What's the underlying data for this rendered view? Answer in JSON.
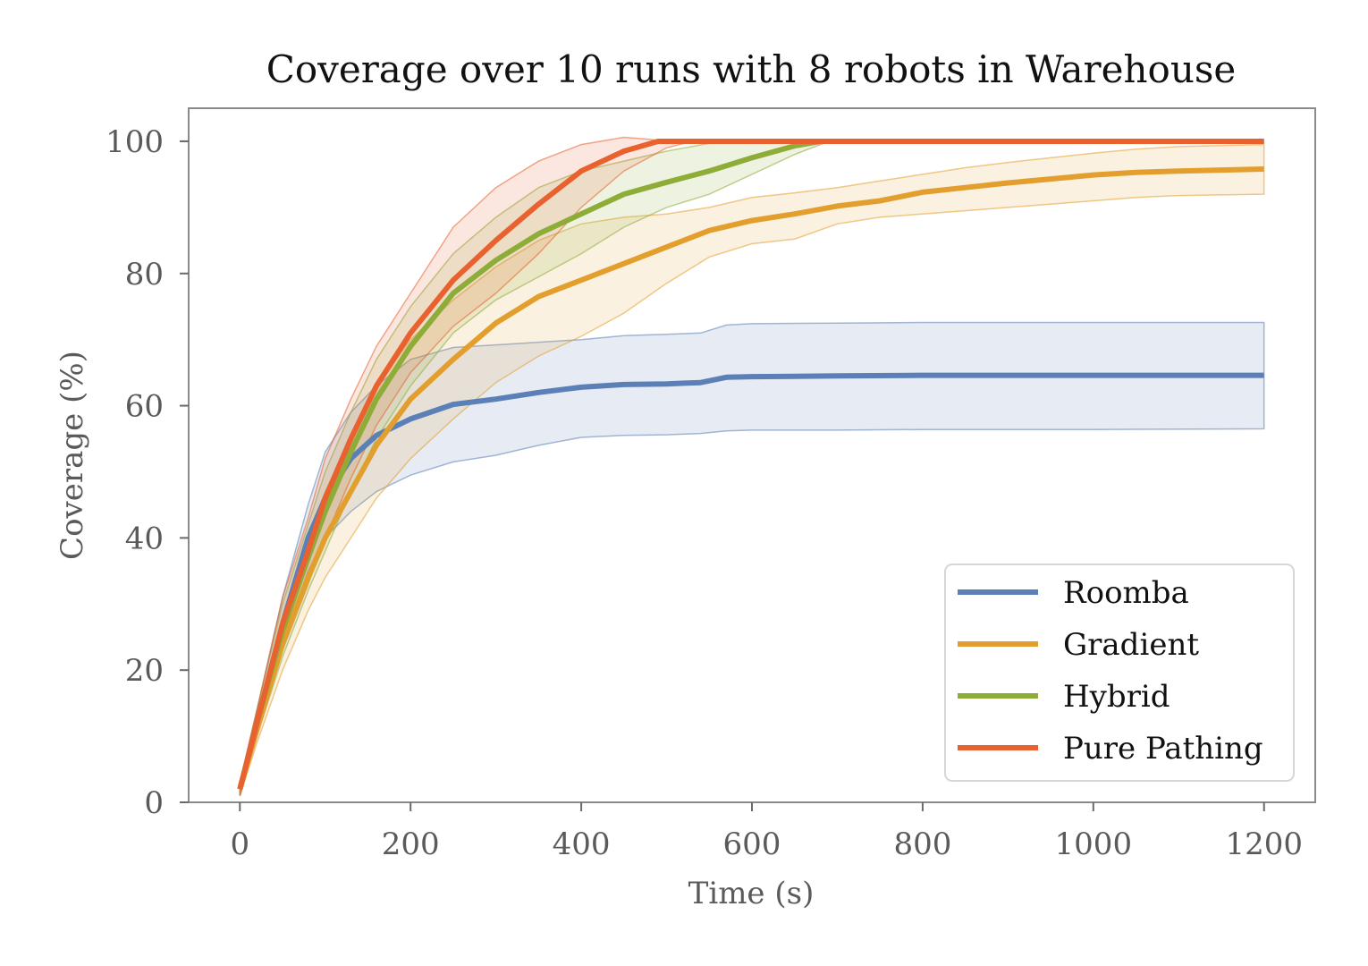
{
  "chart_data": {
    "type": "line",
    "title": "Coverage over 10 runs with 8 robots in Warehouse",
    "xlabel": "Time (s)",
    "ylabel": "Coverage (%)",
    "xlim": [
      -60,
      1260
    ],
    "ylim": [
      0,
      105
    ],
    "x_ticks": [
      0,
      200,
      400,
      600,
      800,
      1000,
      1200
    ],
    "y_ticks": [
      0,
      20,
      40,
      60,
      80,
      100
    ],
    "grid": false,
    "legend_position": "lower-right",
    "series": [
      {
        "name": "Roomba",
        "color": "#5b7fb7",
        "points": [
          [
            0,
            2
          ],
          [
            20,
            12
          ],
          [
            50,
            27
          ],
          [
            80,
            40
          ],
          [
            100,
            46
          ],
          [
            130,
            52
          ],
          [
            160,
            55.5
          ],
          [
            200,
            58
          ],
          [
            250,
            60.2
          ],
          [
            300,
            61
          ],
          [
            350,
            62
          ],
          [
            400,
            62.8
          ],
          [
            450,
            63.2
          ],
          [
            500,
            63.3
          ],
          [
            540,
            63.5
          ],
          [
            570,
            64.3
          ],
          [
            600,
            64.4
          ],
          [
            700,
            64.5
          ],
          [
            800,
            64.6
          ],
          [
            1000,
            64.6
          ],
          [
            1200,
            64.6
          ]
        ],
        "upper": [
          [
            0,
            3
          ],
          [
            20,
            14
          ],
          [
            50,
            31
          ],
          [
            80,
            45
          ],
          [
            100,
            53
          ],
          [
            130,
            59
          ],
          [
            160,
            63
          ],
          [
            200,
            67
          ],
          [
            250,
            68.8
          ],
          [
            300,
            69.2
          ],
          [
            350,
            69.6
          ],
          [
            400,
            70
          ],
          [
            450,
            70.6
          ],
          [
            500,
            70.8
          ],
          [
            540,
            71
          ],
          [
            570,
            72.2
          ],
          [
            600,
            72.4
          ],
          [
            700,
            72.5
          ],
          [
            800,
            72.6
          ],
          [
            1000,
            72.6
          ],
          [
            1200,
            72.6
          ]
        ],
        "lower": [
          [
            0,
            1
          ],
          [
            20,
            10
          ],
          [
            50,
            24
          ],
          [
            80,
            35
          ],
          [
            100,
            40
          ],
          [
            130,
            44
          ],
          [
            160,
            47
          ],
          [
            200,
            49.5
          ],
          [
            250,
            51.5
          ],
          [
            300,
            52.5
          ],
          [
            350,
            54
          ],
          [
            400,
            55.2
          ],
          [
            450,
            55.5
          ],
          [
            500,
            55.6
          ],
          [
            540,
            55.8
          ],
          [
            570,
            56.2
          ],
          [
            600,
            56.3
          ],
          [
            700,
            56.3
          ],
          [
            800,
            56.4
          ],
          [
            1000,
            56.4
          ],
          [
            1200,
            56.5
          ]
        ]
      },
      {
        "name": "Gradient",
        "color": "#e39f2e",
        "points": [
          [
            0,
            2
          ],
          [
            20,
            11
          ],
          [
            50,
            24
          ],
          [
            80,
            34
          ],
          [
            100,
            40
          ],
          [
            130,
            47
          ],
          [
            160,
            54
          ],
          [
            200,
            61
          ],
          [
            250,
            67
          ],
          [
            300,
            72.5
          ],
          [
            350,
            76.5
          ],
          [
            400,
            79
          ],
          [
            450,
            81.5
          ],
          [
            500,
            84
          ],
          [
            550,
            86.5
          ],
          [
            600,
            88
          ],
          [
            650,
            89
          ],
          [
            700,
            90.2
          ],
          [
            750,
            91
          ],
          [
            800,
            92.3
          ],
          [
            850,
            93
          ],
          [
            900,
            93.7
          ],
          [
            950,
            94.3
          ],
          [
            1000,
            94.9
          ],
          [
            1050,
            95.3
          ],
          [
            1100,
            95.5
          ],
          [
            1200,
            95.8
          ]
        ],
        "upper": [
          [
            0,
            3
          ],
          [
            20,
            13
          ],
          [
            50,
            28
          ],
          [
            80,
            40
          ],
          [
            100,
            47
          ],
          [
            130,
            55
          ],
          [
            160,
            63
          ],
          [
            200,
            70
          ],
          [
            250,
            76
          ],
          [
            300,
            81
          ],
          [
            350,
            85
          ],
          [
            400,
            87.5
          ],
          [
            450,
            88.5
          ],
          [
            500,
            89
          ],
          [
            550,
            90
          ],
          [
            600,
            91.5
          ],
          [
            650,
            92.2
          ],
          [
            700,
            93
          ],
          [
            750,
            94
          ],
          [
            800,
            95
          ],
          [
            850,
            96
          ],
          [
            900,
            96.8
          ],
          [
            950,
            97.5
          ],
          [
            1000,
            98.2
          ],
          [
            1050,
            98.8
          ],
          [
            1100,
            99.2
          ],
          [
            1200,
            99.5
          ]
        ],
        "lower": [
          [
            0,
            1
          ],
          [
            20,
            9
          ],
          [
            50,
            20
          ],
          [
            80,
            29
          ],
          [
            100,
            34
          ],
          [
            130,
            40
          ],
          [
            160,
            46
          ],
          [
            200,
            52
          ],
          [
            250,
            58
          ],
          [
            300,
            63.5
          ],
          [
            350,
            67.5
          ],
          [
            400,
            70.5
          ],
          [
            450,
            74
          ],
          [
            500,
            78.5
          ],
          [
            550,
            82.5
          ],
          [
            600,
            84.5
          ],
          [
            650,
            85.2
          ],
          [
            700,
            87.5
          ],
          [
            750,
            88.5
          ],
          [
            800,
            89
          ],
          [
            850,
            89.5
          ],
          [
            900,
            90
          ],
          [
            950,
            90.5
          ],
          [
            1000,
            91
          ],
          [
            1050,
            91.5
          ],
          [
            1100,
            91.8
          ],
          [
            1200,
            92
          ]
        ]
      },
      {
        "name": "Hybrid",
        "color": "#8eac38",
        "points": [
          [
            0,
            2
          ],
          [
            20,
            12
          ],
          [
            50,
            26
          ],
          [
            80,
            37
          ],
          [
            100,
            44
          ],
          [
            130,
            53
          ],
          [
            160,
            61
          ],
          [
            200,
            69
          ],
          [
            250,
            77
          ],
          [
            300,
            82
          ],
          [
            350,
            86
          ],
          [
            400,
            89
          ],
          [
            450,
            92
          ],
          [
            500,
            93.8
          ],
          [
            550,
            95.5
          ],
          [
            600,
            97.5
          ],
          [
            650,
            99.3
          ],
          [
            680,
            100
          ],
          [
            1200,
            100
          ]
        ],
        "upper": [
          [
            0,
            3
          ],
          [
            20,
            14
          ],
          [
            50,
            30
          ],
          [
            80,
            42
          ],
          [
            100,
            50
          ],
          [
            130,
            59
          ],
          [
            160,
            67
          ],
          [
            200,
            75
          ],
          [
            250,
            83
          ],
          [
            300,
            88.5
          ],
          [
            350,
            93
          ],
          [
            400,
            95.5
          ],
          [
            450,
            97
          ],
          [
            500,
            98.5
          ],
          [
            550,
            99.7
          ],
          [
            600,
            100
          ],
          [
            1200,
            100
          ]
        ],
        "lower": [
          [
            0,
            1
          ],
          [
            20,
            10
          ],
          [
            50,
            22
          ],
          [
            80,
            32
          ],
          [
            100,
            38
          ],
          [
            130,
            47
          ],
          [
            160,
            55
          ],
          [
            200,
            63
          ],
          [
            250,
            71
          ],
          [
            300,
            76
          ],
          [
            350,
            79.5
          ],
          [
            400,
            83
          ],
          [
            450,
            87
          ],
          [
            500,
            90
          ],
          [
            550,
            92
          ],
          [
            600,
            95
          ],
          [
            650,
            98
          ],
          [
            690,
            100
          ],
          [
            1200,
            100
          ]
        ]
      },
      {
        "name": "Pure Pathing",
        "color": "#e8612e",
        "points": [
          [
            0,
            2
          ],
          [
            20,
            12
          ],
          [
            50,
            27
          ],
          [
            80,
            38
          ],
          [
            100,
            46
          ],
          [
            130,
            55
          ],
          [
            160,
            63
          ],
          [
            200,
            71
          ],
          [
            250,
            79
          ],
          [
            300,
            85
          ],
          [
            350,
            90.5
          ],
          [
            400,
            95.5
          ],
          [
            450,
            98.5
          ],
          [
            490,
            100
          ],
          [
            1200,
            100
          ]
        ],
        "upper": [
          [
            0,
            3
          ],
          [
            20,
            14
          ],
          [
            50,
            31
          ],
          [
            80,
            43
          ],
          [
            100,
            52
          ],
          [
            130,
            61
          ],
          [
            160,
            69
          ],
          [
            200,
            77
          ],
          [
            250,
            87
          ],
          [
            300,
            93
          ],
          [
            350,
            97
          ],
          [
            400,
            99.5
          ],
          [
            450,
            100.6
          ],
          [
            480,
            100.3
          ],
          [
            500,
            100
          ],
          [
            1200,
            100
          ]
        ],
        "lower": [
          [
            0,
            1
          ],
          [
            20,
            10
          ],
          [
            50,
            23
          ],
          [
            80,
            33
          ],
          [
            100,
            40
          ],
          [
            130,
            49
          ],
          [
            160,
            57
          ],
          [
            200,
            65
          ],
          [
            250,
            72
          ],
          [
            300,
            77
          ],
          [
            350,
            83
          ],
          [
            400,
            90
          ],
          [
            450,
            95.5
          ],
          [
            500,
            99
          ],
          [
            530,
            100
          ],
          [
            1200,
            100
          ]
        ]
      }
    ]
  }
}
